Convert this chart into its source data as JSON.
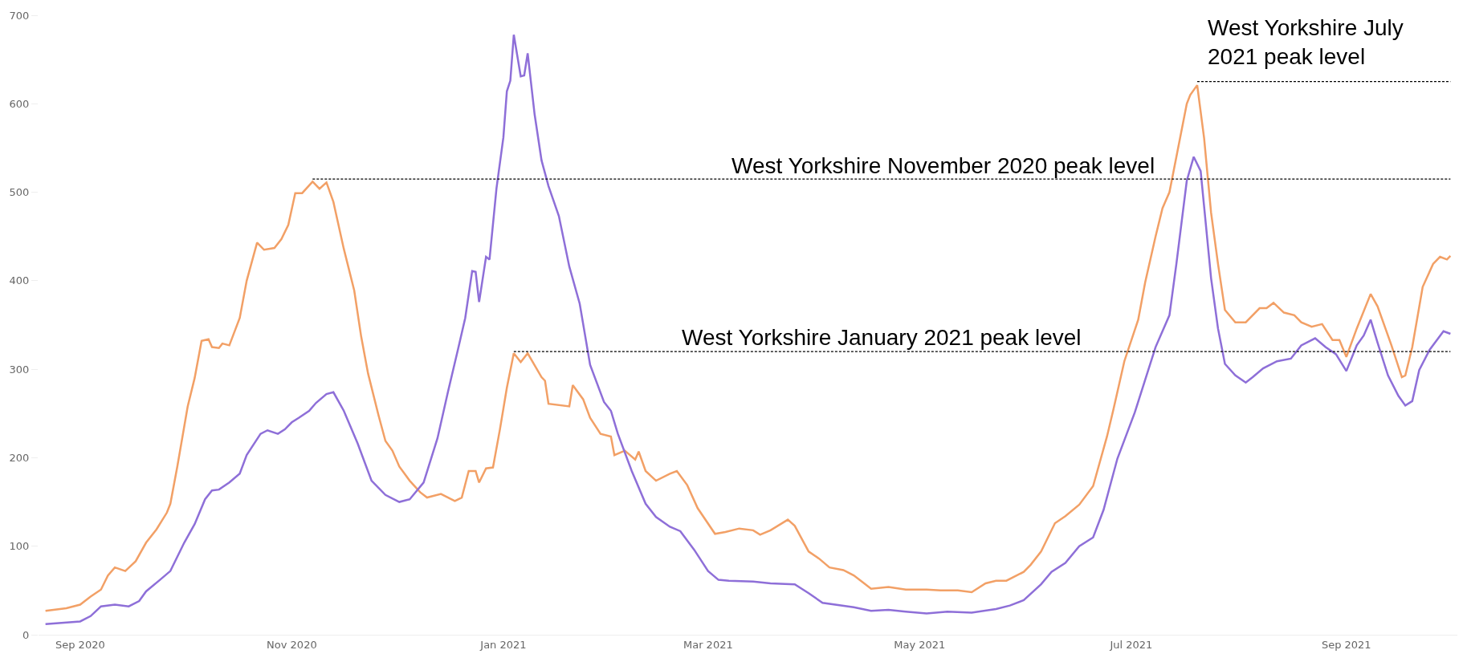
{
  "chart_data": {
    "type": "line",
    "xlim": [
      "2020-08-20",
      "2021-10-03"
    ],
    "ylim": [
      0,
      700
    ],
    "yticks": [
      0,
      100,
      200,
      300,
      400,
      500,
      600,
      700
    ],
    "xticks": [
      {
        "value": "2020-09-01",
        "label": "Sep 2020"
      },
      {
        "value": "2020-11-01",
        "label": "Nov 2020"
      },
      {
        "value": "2021-01-01",
        "label": "Jan 2021"
      },
      {
        "value": "2021-03-01",
        "label": "Mar 2021"
      },
      {
        "value": "2021-05-01",
        "label": "May 2021"
      },
      {
        "value": "2021-07-01",
        "label": "Jul 2021"
      },
      {
        "value": "2021-09-01",
        "label": "Sep 2021"
      }
    ],
    "grid": false,
    "marker": "none",
    "line_style": "solid",
    "series": [
      {
        "color": "#f2a066",
        "x": [
          "2020-08-22",
          "2020-08-28",
          "2020-09-01",
          "2020-09-04",
          "2020-09-07",
          "2020-09-09",
          "2020-09-11",
          "2020-09-14",
          "2020-09-17",
          "2020-09-20",
          "2020-09-23",
          "2020-09-26",
          "2020-09-27",
          "2020-09-29",
          "2020-10-02",
          "2020-10-04",
          "2020-10-06",
          "2020-10-08",
          "2020-10-09",
          "2020-10-11",
          "2020-10-12",
          "2020-10-14",
          "2020-10-17",
          "2020-10-19",
          "2020-10-22",
          "2020-10-24",
          "2020-10-27",
          "2020-10-29",
          "2020-10-31",
          "2020-11-02",
          "2020-11-04",
          "2020-11-07",
          "2020-11-09",
          "2020-11-11",
          "2020-11-13",
          "2020-11-16",
          "2020-11-19",
          "2020-11-21",
          "2020-11-23",
          "2020-11-26",
          "2020-11-28",
          "2020-11-30",
          "2020-12-02",
          "2020-12-05",
          "2020-12-08",
          "2020-12-10",
          "2020-12-14",
          "2020-12-18",
          "2020-12-20",
          "2020-12-22",
          "2020-12-24",
          "2020-12-25",
          "2020-12-27",
          "2020-12-29",
          "2020-12-31",
          "2021-01-02",
          "2021-01-04",
          "2021-01-06",
          "2021-01-08",
          "2021-01-12",
          "2021-01-13",
          "2021-01-14",
          "2021-01-20",
          "2021-01-21",
          "2021-01-24",
          "2021-01-26",
          "2021-01-29",
          "2021-02-01",
          "2021-02-02",
          "2021-02-05",
          "2021-02-08",
          "2021-02-09",
          "2021-02-11",
          "2021-02-14",
          "2021-02-18",
          "2021-02-20",
          "2021-02-23",
          "2021-02-26",
          "2021-03-03",
          "2021-03-06",
          "2021-03-10",
          "2021-03-14",
          "2021-03-16",
          "2021-03-19",
          "2021-03-24",
          "2021-03-26",
          "2021-03-30",
          "2021-04-02",
          "2021-04-05",
          "2021-04-09",
          "2021-04-12",
          "2021-04-15",
          "2021-04-17",
          "2021-04-22",
          "2021-04-27",
          "2021-05-03",
          "2021-05-07",
          "2021-05-12",
          "2021-05-16",
          "2021-05-20",
          "2021-05-23",
          "2021-05-26",
          "2021-05-31",
          "2021-06-02",
          "2021-06-05",
          "2021-06-09",
          "2021-06-12",
          "2021-06-16",
          "2021-06-20",
          "2021-06-24",
          "2021-06-26",
          "2021-06-29",
          "2021-07-03",
          "2021-07-05",
          "2021-07-08",
          "2021-07-10",
          "2021-07-12",
          "2021-07-14",
          "2021-07-17",
          "2021-07-18",
          "2021-07-20",
          "2021-07-22",
          "2021-07-24",
          "2021-07-26",
          "2021-07-28",
          "2021-07-31",
          "2021-08-03",
          "2021-08-07",
          "2021-08-09",
          "2021-08-11",
          "2021-08-14",
          "2021-08-17",
          "2021-08-19",
          "2021-08-22",
          "2021-08-25",
          "2021-08-28",
          "2021-08-30",
          "2021-09-01",
          "2021-09-04",
          "2021-09-08",
          "2021-09-10",
          "2021-09-14",
          "2021-09-17",
          "2021-09-18",
          "2021-09-20",
          "2021-09-23",
          "2021-09-26",
          "2021-09-28",
          "2021-09-30",
          "2021-10-01"
        ],
        "values": [
          27,
          30,
          34,
          43,
          51,
          67,
          76,
          72,
          83,
          104,
          119,
          138,
          148,
          190,
          258,
          290,
          332,
          334,
          325,
          324,
          329,
          327,
          358,
          400,
          443,
          435,
          437,
          447,
          463,
          499,
          499,
          512,
          504,
          511,
          489,
          436,
          389,
          337,
          295,
          248,
          219,
          208,
          190,
          174,
          161,
          155,
          159,
          151,
          155,
          185,
          185,
          172,
          188,
          189,
          232,
          279,
          318,
          308,
          318,
          291,
          287,
          261,
          258,
          282,
          266,
          245,
          227,
          224,
          203,
          208,
          198,
          207,
          185,
          174,
          182,
          185,
          169,
          143,
          114,
          116,
          120,
          118,
          113,
          118,
          130,
          123,
          94,
          86,
          76,
          73,
          67,
          58,
          52,
          54,
          51,
          51,
          50,
          50,
          48,
          58,
          61,
          61,
          71,
          79,
          94,
          126,
          134,
          147,
          168,
          224,
          257,
          309,
          356,
          398,
          450,
          482,
          500,
          540,
          600,
          610,
          621,
          561,
          477,
          419,
          367,
          353,
          353,
          369,
          369,
          375,
          364,
          361,
          353,
          348,
          351,
          333,
          333,
          314,
          346,
          385,
          371,
          327,
          291,
          293,
          325,
          393,
          419,
          427,
          424,
          428
        ]
      },
      {
        "color": "#8e6fd8",
        "x": [
          "2020-08-22",
          "2020-09-01",
          "2020-09-04",
          "2020-09-07",
          "2020-09-11",
          "2020-09-15",
          "2020-09-18",
          "2020-09-20",
          "2020-09-24",
          "2020-09-27",
          "2020-10-01",
          "2020-10-04",
          "2020-10-07",
          "2020-10-09",
          "2020-10-11",
          "2020-10-14",
          "2020-10-17",
          "2020-10-19",
          "2020-10-23",
          "2020-10-25",
          "2020-10-28",
          "2020-10-30",
          "2020-11-01",
          "2020-11-03",
          "2020-11-06",
          "2020-11-08",
          "2020-11-11",
          "2020-11-13",
          "2020-11-16",
          "2020-11-20",
          "2020-11-22",
          "2020-11-24",
          "2020-11-28",
          "2020-12-02",
          "2020-12-05",
          "2020-12-09",
          "2020-12-13",
          "2020-12-16",
          "2020-12-19",
          "2020-12-21",
          "2020-12-23",
          "2020-12-24",
          "2020-12-25",
          "2020-12-27",
          "2020-12-28",
          "2020-12-30",
          "2021-01-01",
          "2021-01-02",
          "2021-01-03",
          "2021-01-04",
          "2021-01-06",
          "2021-01-07",
          "2021-01-08",
          "2021-01-10",
          "2021-01-12",
          "2021-01-14",
          "2021-01-17",
          "2021-01-20",
          "2021-01-23",
          "2021-01-26",
          "2021-01-30",
          "2021-02-01",
          "2021-02-03",
          "2021-02-07",
          "2021-02-11",
          "2021-02-14",
          "2021-02-18",
          "2021-02-21",
          "2021-02-25",
          "2021-03-01",
          "2021-03-04",
          "2021-03-07",
          "2021-03-14",
          "2021-03-19",
          "2021-03-26",
          "2021-03-30",
          "2021-04-03",
          "2021-04-12",
          "2021-04-17",
          "2021-04-22",
          "2021-04-27",
          "2021-05-03",
          "2021-05-09",
          "2021-05-16",
          "2021-05-23",
          "2021-05-27",
          "2021-05-31",
          "2021-06-05",
          "2021-06-08",
          "2021-06-12",
          "2021-06-16",
          "2021-06-20",
          "2021-06-23",
          "2021-06-27",
          "2021-07-02",
          "2021-07-05",
          "2021-07-08",
          "2021-07-12",
          "2021-07-14",
          "2021-07-17",
          "2021-07-19",
          "2021-07-21",
          "2021-07-24",
          "2021-07-26",
          "2021-07-28",
          "2021-07-31",
          "2021-08-03",
          "2021-08-05",
          "2021-08-08",
          "2021-08-12",
          "2021-08-16",
          "2021-08-19",
          "2021-08-23",
          "2021-08-26",
          "2021-08-29",
          "2021-09-01",
          "2021-09-04",
          "2021-09-06",
          "2021-09-08",
          "2021-09-10",
          "2021-09-13",
          "2021-09-16",
          "2021-09-18",
          "2021-09-20",
          "2021-09-22",
          "2021-09-25",
          "2021-09-29",
          "2021-10-01"
        ],
        "values": [
          12,
          15,
          21,
          32,
          34,
          32,
          38,
          49,
          62,
          72,
          104,
          125,
          153,
          163,
          164,
          172,
          182,
          203,
          227,
          231,
          227,
          232,
          240,
          245,
          253,
          262,
          272,
          274,
          253,
          216,
          195,
          174,
          158,
          150,
          153,
          172,
          222,
          274,
          324,
          358,
          411,
          410,
          376,
          427,
          424,
          504,
          562,
          614,
          626,
          678,
          631,
          632,
          657,
          588,
          536,
          507,
          473,
          416,
          374,
          305,
          263,
          253,
          227,
          185,
          148,
          133,
          122,
          117,
          96,
          72,
          62,
          61,
          60,
          58,
          57,
          47,
          36,
          31,
          27,
          28,
          26,
          24,
          26,
          25,
          29,
          33,
          39,
          57,
          71,
          81,
          100,
          110,
          141,
          199,
          251,
          288,
          325,
          361,
          419,
          513,
          540,
          524,
          403,
          346,
          306,
          293,
          285,
          291,
          301,
          309,
          312,
          327,
          335,
          325,
          317,
          298,
          327,
          338,
          356,
          330,
          293,
          270,
          259,
          264,
          299,
          322,
          343,
          340
        ]
      },
      {
        "type": "line",
        "line_style": "dashed",
        "color": "#000000",
        "x": [
          "2020-11-07",
          "2021-10-01"
        ],
        "values": [
          515,
          515
        ]
      },
      {
        "type": "line",
        "line_style": "dashed",
        "color": "#000000",
        "x": [
          "2021-01-04",
          "2021-10-01"
        ],
        "values": [
          320,
          320
        ]
      },
      {
        "type": "line",
        "line_style": "dashed",
        "color": "#000000",
        "x": [
          "2021-07-20",
          "2021-10-01"
        ],
        "values": [
          625,
          625
        ]
      }
    ],
    "annotations": [
      "West Yorkshire November 2020 peak level",
      "West Yorkshire January 2021 peak level",
      "West Yorkshire July\n2021 peak level"
    ]
  }
}
